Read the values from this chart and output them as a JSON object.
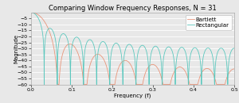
{
  "title": "Comparing Window Frequency Responses, N = 31",
  "xlabel": "Frequency (f)",
  "ylabel": "Magnitude",
  "N": 31,
  "xlim": [
    0.0,
    0.5
  ],
  "ylim": [
    -60,
    0
  ],
  "yticks": [
    -5,
    -10,
    -15,
    -20,
    -25,
    -30,
    -35,
    -40,
    -45,
    -50,
    -55,
    -60
  ],
  "xticks": [
    0.0,
    0.1,
    0.2,
    0.3,
    0.4,
    0.5
  ],
  "bartlett_color": "#e8957a",
  "rectangular_color": "#5bc8be",
  "legend_labels": [
    "Bartlett",
    "Rectangular"
  ],
  "background_color": "#e8e8e8",
  "grid_color": "#ffffff",
  "title_fontsize": 6.0,
  "label_fontsize": 5.0,
  "tick_fontsize": 4.5,
  "legend_fontsize": 5.0,
  "line_width": 0.6
}
